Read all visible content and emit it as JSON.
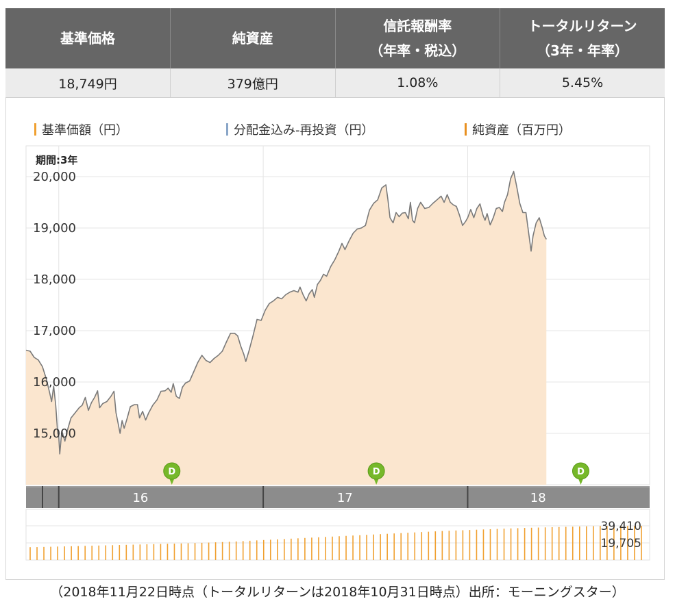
{
  "summary": {
    "headers": [
      {
        "line1": "基準価格",
        "line2": ""
      },
      {
        "line1": "純資産",
        "line2": ""
      },
      {
        "line1": "信託報酬率",
        "line2": "（年率・税込）"
      },
      {
        "line1": "トータルリターン",
        "line2": "（3年・年率）"
      }
    ],
    "values": [
      "18,749円",
      "379億円",
      "1.08%",
      "5.45%"
    ]
  },
  "legend": [
    {
      "label": "基準価額（円）",
      "color": "#f0a030"
    },
    {
      "label": "分配金込み-再投資（円）",
      "color": "#8aa6c8"
    },
    {
      "label": "純資産（百万円）",
      "color": "#e89020"
    }
  ],
  "colors": {
    "area_fill": "#fbe6cf",
    "line": "#7a7a7a",
    "bar": "#f0a030",
    "marker": "#76b82a",
    "axis_band": "#8c8c8c"
  },
  "chart_data": {
    "type": "area",
    "period_label": "期間:3年",
    "ylim": [
      14000,
      20600
    ],
    "yticks": [
      15000,
      16000,
      17000,
      18000,
      19000,
      20000
    ],
    "ytick_labels": [
      "15,000",
      "16,000",
      "17,000",
      "18,000",
      "19,000",
      "20,000"
    ],
    "xlim": [
      2015.84,
      2018.89
    ],
    "year_ticks": [
      {
        "x": 2016.0,
        "label": "16"
      },
      {
        "x": 2017.0,
        "label": "17"
      },
      {
        "x": 2018.0,
        "label": "18"
      }
    ],
    "distribution_markers": [
      {
        "x": 2016.6,
        "label": "D"
      },
      {
        "x": 2017.6,
        "label": "D"
      },
      {
        "x": 2018.6,
        "label": "D"
      }
    ],
    "series": [
      {
        "values": [
          [
            2015.84,
            16620
          ],
          [
            2015.86,
            16600
          ],
          [
            2015.88,
            16480
          ],
          [
            2015.9,
            16430
          ],
          [
            2015.92,
            16300
          ],
          [
            2015.94,
            16050
          ],
          [
            2015.955,
            15800
          ],
          [
            2015.965,
            15620
          ],
          [
            2015.975,
            15920
          ],
          [
            2015.985,
            15550
          ],
          [
            2015.995,
            15000
          ],
          [
            2016.0,
            14950
          ],
          [
            2016.005,
            14600
          ],
          [
            2016.015,
            15050
          ],
          [
            2016.03,
            14850
          ],
          [
            2016.045,
            15100
          ],
          [
            2016.06,
            15300
          ],
          [
            2016.08,
            15400
          ],
          [
            2016.1,
            15500
          ],
          [
            2016.115,
            15550
          ],
          [
            2016.13,
            15700
          ],
          [
            2016.145,
            15450
          ],
          [
            2016.16,
            15600
          ],
          [
            2016.175,
            15700
          ],
          [
            2016.19,
            15830
          ],
          [
            2016.2,
            15500
          ],
          [
            2016.215,
            15580
          ],
          [
            2016.235,
            15620
          ],
          [
            2016.255,
            15720
          ],
          [
            2016.27,
            15820
          ],
          [
            2016.28,
            15400
          ],
          [
            2016.29,
            15200
          ],
          [
            2016.3,
            15000
          ],
          [
            2016.31,
            15250
          ],
          [
            2016.32,
            15100
          ],
          [
            2016.335,
            15300
          ],
          [
            2016.35,
            15520
          ],
          [
            2016.37,
            15560
          ],
          [
            2016.385,
            15560
          ],
          [
            2016.395,
            15300
          ],
          [
            2016.41,
            15430
          ],
          [
            2016.425,
            15260
          ],
          [
            2016.44,
            15400
          ],
          [
            2016.46,
            15550
          ],
          [
            2016.48,
            15650
          ],
          [
            2016.5,
            15820
          ],
          [
            2016.52,
            15830
          ],
          [
            2016.535,
            15880
          ],
          [
            2016.55,
            15800
          ],
          [
            2016.56,
            15970
          ],
          [
            2016.575,
            15720
          ],
          [
            2016.59,
            15680
          ],
          [
            2016.605,
            15900
          ],
          [
            2016.62,
            15980
          ],
          [
            2016.64,
            16020
          ],
          [
            2016.66,
            16200
          ],
          [
            2016.68,
            16380
          ],
          [
            2016.7,
            16520
          ],
          [
            2016.72,
            16420
          ],
          [
            2016.74,
            16380
          ],
          [
            2016.76,
            16460
          ],
          [
            2016.78,
            16520
          ],
          [
            2016.8,
            16600
          ],
          [
            2016.82,
            16780
          ],
          [
            2016.84,
            16950
          ],
          [
            2016.86,
            16950
          ],
          [
            2016.875,
            16900
          ],
          [
            2016.89,
            16700
          ],
          [
            2016.905,
            16540
          ],
          [
            2016.915,
            16400
          ],
          [
            2016.93,
            16600
          ],
          [
            2016.95,
            16900
          ],
          [
            2016.97,
            17220
          ],
          [
            2016.99,
            17200
          ],
          [
            2017.01,
            17400
          ],
          [
            2017.03,
            17530
          ],
          [
            2017.05,
            17580
          ],
          [
            2017.07,
            17650
          ],
          [
            2017.09,
            17620
          ],
          [
            2017.11,
            17700
          ],
          [
            2017.13,
            17750
          ],
          [
            2017.15,
            17780
          ],
          [
            2017.17,
            17750
          ],
          [
            2017.18,
            17850
          ],
          [
            2017.195,
            17700
          ],
          [
            2017.21,
            17580
          ],
          [
            2017.225,
            17720
          ],
          [
            2017.24,
            17800
          ],
          [
            2017.25,
            17650
          ],
          [
            2017.265,
            17900
          ],
          [
            2017.28,
            17980
          ],
          [
            2017.295,
            18100
          ],
          [
            2017.31,
            18060
          ],
          [
            2017.33,
            18250
          ],
          [
            2017.35,
            18380
          ],
          [
            2017.37,
            18550
          ],
          [
            2017.385,
            18700
          ],
          [
            2017.4,
            18580
          ],
          [
            2017.42,
            18750
          ],
          [
            2017.44,
            18900
          ],
          [
            2017.46,
            18980
          ],
          [
            2017.48,
            19000
          ],
          [
            2017.5,
            19050
          ],
          [
            2017.52,
            19350
          ],
          [
            2017.54,
            19480
          ],
          [
            2017.56,
            19550
          ],
          [
            2017.58,
            19780
          ],
          [
            2017.6,
            19840
          ],
          [
            2017.61,
            19550
          ],
          [
            2017.62,
            19200
          ],
          [
            2017.635,
            19100
          ],
          [
            2017.65,
            19300
          ],
          [
            2017.665,
            19220
          ],
          [
            2017.68,
            19290
          ],
          [
            2017.695,
            19300
          ],
          [
            2017.71,
            19180
          ],
          [
            2017.72,
            19500
          ],
          [
            2017.73,
            19150
          ],
          [
            2017.74,
            19100
          ],
          [
            2017.755,
            19380
          ],
          [
            2017.77,
            19500
          ],
          [
            2017.79,
            19380
          ],
          [
            2017.81,
            19400
          ],
          [
            2017.83,
            19480
          ],
          [
            2017.85,
            19550
          ],
          [
            2017.87,
            19620
          ],
          [
            2017.885,
            19500
          ],
          [
            2017.9,
            19650
          ],
          [
            2017.915,
            19500
          ],
          [
            2017.93,
            19450
          ],
          [
            2017.945,
            19420
          ],
          [
            2017.96,
            19250
          ],
          [
            2017.975,
            19050
          ],
          [
            2017.99,
            19130
          ],
          [
            2018.0,
            19200
          ],
          [
            2018.015,
            19360
          ],
          [
            2018.03,
            19200
          ],
          [
            2018.045,
            19380
          ],
          [
            2018.06,
            19470
          ],
          [
            2018.075,
            19250
          ],
          [
            2018.085,
            19150
          ],
          [
            2018.095,
            19280
          ],
          [
            2018.11,
            19060
          ],
          [
            2018.125,
            19200
          ],
          [
            2018.14,
            19380
          ],
          [
            2018.155,
            19400
          ],
          [
            2018.17,
            19320
          ],
          [
            2018.18,
            19500
          ],
          [
            2018.195,
            19650
          ],
          [
            2018.21,
            19960
          ],
          [
            2018.225,
            20100
          ],
          [
            2018.24,
            19800
          ],
          [
            2018.255,
            19480
          ],
          [
            2018.27,
            19300
          ],
          [
            2018.285,
            19300
          ],
          [
            2018.3,
            18850
          ],
          [
            2018.31,
            18550
          ],
          [
            2018.32,
            18850
          ],
          [
            2018.335,
            19100
          ],
          [
            2018.35,
            19200
          ],
          [
            2018.365,
            19000
          ],
          [
            2018.375,
            18850
          ],
          [
            2018.385,
            18780
          ]
        ]
      }
    ],
    "net_assets": {
      "ytick_labels": [
        "39,410",
        "19,705"
      ],
      "ymax": 39410,
      "values": [
        14800,
        14900,
        15100,
        15300,
        15500,
        15700,
        15900,
        16100,
        16300,
        16500,
        16700,
        16900,
        17100,
        17300,
        17500,
        17700,
        17900,
        18100,
        18300,
        18500,
        18700,
        18900,
        19100,
        19300,
        19500,
        19800,
        20100,
        20400,
        20700,
        21000,
        21400,
        21800,
        22200,
        22600,
        23000,
        23400,
        23800,
        24200,
        24600,
        25000,
        25400,
        25800,
        26200,
        26600,
        27000,
        27400,
        27800,
        28200,
        28600,
        29000,
        29400,
        29800,
        30200,
        30600,
        31000,
        31400,
        31800,
        32200,
        32600,
        33000,
        33400,
        33700,
        34000,
        34300,
        34600,
        34900,
        35200,
        35500,
        35800,
        36100,
        36400,
        36700,
        37000,
        37200,
        37400,
        37600,
        37800,
        38000,
        38200,
        38400,
        38600,
        38800,
        39000,
        39200,
        39300,
        39400,
        39410,
        39300,
        39200,
        39350
      ]
    }
  },
  "footer": "（2018年11月22日時点（トータルリターンは2018年10月31日時点）出所：モーニングスター）"
}
